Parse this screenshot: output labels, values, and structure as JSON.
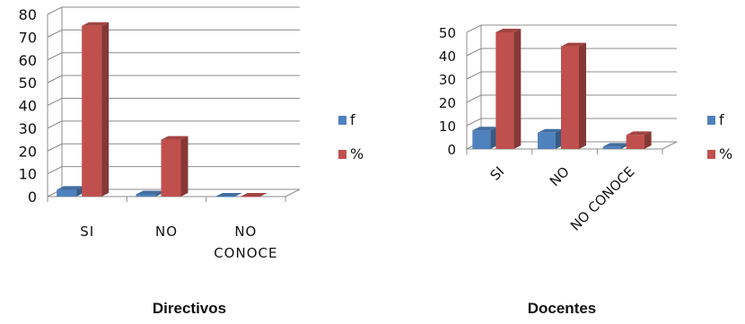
{
  "chart_data": [
    {
      "type": "bar",
      "caption": "Directivos",
      "categories": [
        "SI",
        "NO",
        "NO CONOCE"
      ],
      "category_lines": [
        [
          "SI"
        ],
        [
          "NO"
        ],
        [
          "NO",
          "CONOCE"
        ]
      ],
      "series": [
        {
          "name": "f",
          "values": [
            3,
            1,
            0
          ],
          "color": "#4F81BD"
        },
        {
          "name": "%",
          "values": [
            75,
            25,
            0
          ],
          "color": "#C0504D"
        }
      ],
      "ylim": [
        0,
        80
      ],
      "yticks": [
        0,
        10,
        20,
        30,
        40,
        50,
        60,
        70,
        80
      ],
      "grid": true,
      "legend": "right",
      "style": "3d-column"
    },
    {
      "type": "bar",
      "caption": "Docentes",
      "categories": [
        "SI",
        "NO",
        "NO CONOCE"
      ],
      "series": [
        {
          "name": "f",
          "values": [
            8,
            7,
            1
          ],
          "color": "#4F81BD"
        },
        {
          "name": "%",
          "values": [
            50,
            44,
            6
          ],
          "color": "#C0504D"
        }
      ],
      "ylim": [
        0,
        50
      ],
      "yticks": [
        0,
        10,
        20,
        30,
        40,
        50
      ],
      "grid": true,
      "legend": "right",
      "style": "3d-column",
      "xtick_rotation": "45deg"
    }
  ]
}
